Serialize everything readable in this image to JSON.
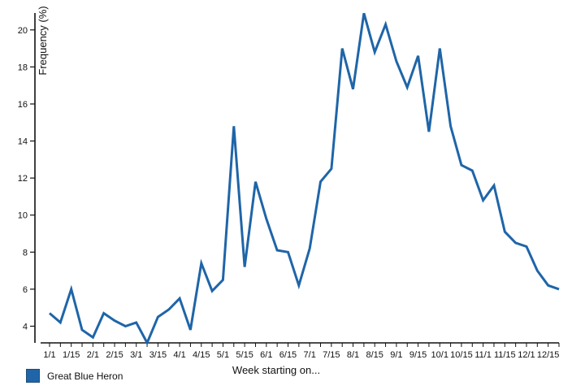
{
  "chart_data": {
    "type": "line",
    "xlabel": "Week starting on...",
    "ylabel": "Frequency (%)",
    "ylim": [
      3.1,
      21
    ],
    "yticks": [
      4,
      6,
      8,
      10,
      12,
      14,
      16,
      18,
      20
    ],
    "xtick_labels": [
      "1/1",
      "1/15",
      "2/1",
      "2/15",
      "3/1",
      "3/15",
      "4/1",
      "4/15",
      "5/1",
      "5/15",
      "6/1",
      "6/15",
      "7/1",
      "7/15",
      "8/1",
      "8/15",
      "9/1",
      "9/15",
      "10/1",
      "10/15",
      "11/1",
      "11/15",
      "12/1",
      "12/15"
    ],
    "x": [
      "1/1",
      "1/8",
      "1/15",
      "1/22",
      "2/1",
      "2/8",
      "2/15",
      "2/22",
      "3/1",
      "3/8",
      "3/15",
      "3/22",
      "4/1",
      "4/8",
      "4/15",
      "4/22",
      "5/1",
      "5/8",
      "5/15",
      "5/22",
      "6/1",
      "6/8",
      "6/15",
      "6/22",
      "7/1",
      "7/8",
      "7/15",
      "7/22",
      "8/1",
      "8/8",
      "8/15",
      "8/22",
      "9/1",
      "9/8",
      "9/15",
      "9/22",
      "10/1",
      "10/8",
      "10/15",
      "10/22",
      "11/1",
      "11/8",
      "11/15",
      "11/22",
      "12/1",
      "12/8",
      "12/15",
      "12/22"
    ],
    "series": [
      {
        "name": "Great Blue Heron",
        "color": "#1f65a8",
        "values": [
          4.7,
          4.2,
          6.0,
          3.8,
          3.4,
          4.7,
          4.3,
          4.0,
          4.2,
          3.1,
          4.5,
          4.9,
          5.5,
          3.8,
          7.4,
          5.9,
          6.5,
          14.8,
          7.2,
          11.8,
          9.8,
          8.1,
          8.0,
          6.2,
          8.2,
          11.8,
          12.5,
          19.0,
          16.8,
          20.9,
          18.8,
          20.3,
          18.3,
          16.9,
          18.6,
          14.5,
          19.0,
          14.8,
          12.7,
          12.4,
          10.8,
          11.6,
          9.1,
          8.5,
          8.3,
          7.0,
          6.2,
          6.0
        ]
      }
    ],
    "grid": false,
    "legend_position": "bottom-left"
  }
}
